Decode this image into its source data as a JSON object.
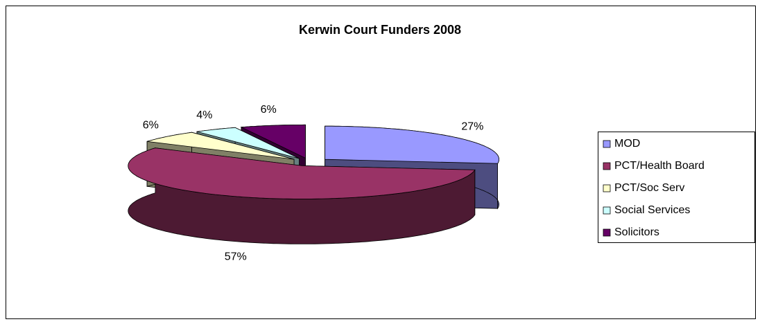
{
  "chart_data": {
    "type": "pie",
    "title": "Kerwin Court Funders 2008",
    "categories": [
      "MOD",
      "PCT/Health Board",
      "PCT/Soc Serv",
      "Social Services",
      "Solicitors"
    ],
    "values": [
      27,
      57,
      6,
      4,
      6
    ],
    "value_labels": [
      "27%",
      "57%",
      "6%",
      "4%",
      "6%"
    ],
    "colors": [
      "#9999ff",
      "#993366",
      "#ffffcc",
      "#ccffff",
      "#660066"
    ],
    "legend": "right"
  }
}
